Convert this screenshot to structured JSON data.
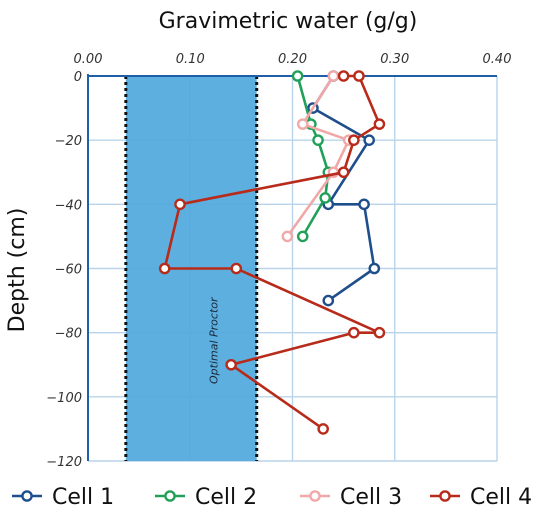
{
  "chart_data": {
    "type": "line",
    "title": "Gravimetric water (g/g)",
    "ylabel": "Depth (cm)",
    "xlabel": "",
    "xlim": [
      0.0,
      0.4
    ],
    "ylim": [
      -120,
      0
    ],
    "x_ticks": [
      "0.00",
      "0.10",
      "0.20",
      "0.30",
      "0.40"
    ],
    "y_ticks": [
      "0",
      "−20",
      "−40",
      "−60",
      "−80",
      "−100",
      "−120"
    ],
    "grid": true,
    "x_axis_position": "top",
    "legend_position": "bottom",
    "band": {
      "label": "Optimal Proctor",
      "x_min": 0.037,
      "x_max": 0.165,
      "color": "#4fa8dc"
    },
    "series": [
      {
        "name": "Cell 1",
        "color": "#1f4e8c",
        "points": [
          [
            0.24,
            0
          ],
          [
            0.22,
            -10
          ],
          [
            0.275,
            -20
          ],
          [
            0.235,
            -40
          ],
          [
            0.27,
            -40
          ],
          [
            0.28,
            -60
          ],
          [
            0.235,
            -70
          ]
        ]
      },
      {
        "name": "Cell 2",
        "color": "#22a05a",
        "points": [
          [
            0.205,
            0
          ],
          [
            0.218,
            -15
          ],
          [
            0.225,
            -20
          ],
          [
            0.235,
            -30
          ],
          [
            0.232,
            -38
          ],
          [
            0.21,
            -50
          ]
        ]
      },
      {
        "name": "Cell 3",
        "color": "#f0a8a8",
        "points": [
          [
            0.24,
            0
          ],
          [
            0.21,
            -15
          ],
          [
            0.255,
            -20
          ],
          [
            0.24,
            -30
          ],
          [
            0.195,
            -50
          ]
        ]
      },
      {
        "name": "Cell 4",
        "color": "#b82a1a",
        "points": [
          [
            0.25,
            0
          ],
          [
            0.265,
            0
          ],
          [
            0.285,
            -15
          ],
          [
            0.26,
            -20
          ],
          [
            0.25,
            -30
          ],
          [
            0.09,
            -40
          ],
          [
            0.075,
            -60
          ],
          [
            0.145,
            -60
          ],
          [
            0.285,
            -80
          ],
          [
            0.26,
            -80
          ],
          [
            0.14,
            -90
          ],
          [
            0.23,
            -110
          ]
        ]
      }
    ]
  }
}
